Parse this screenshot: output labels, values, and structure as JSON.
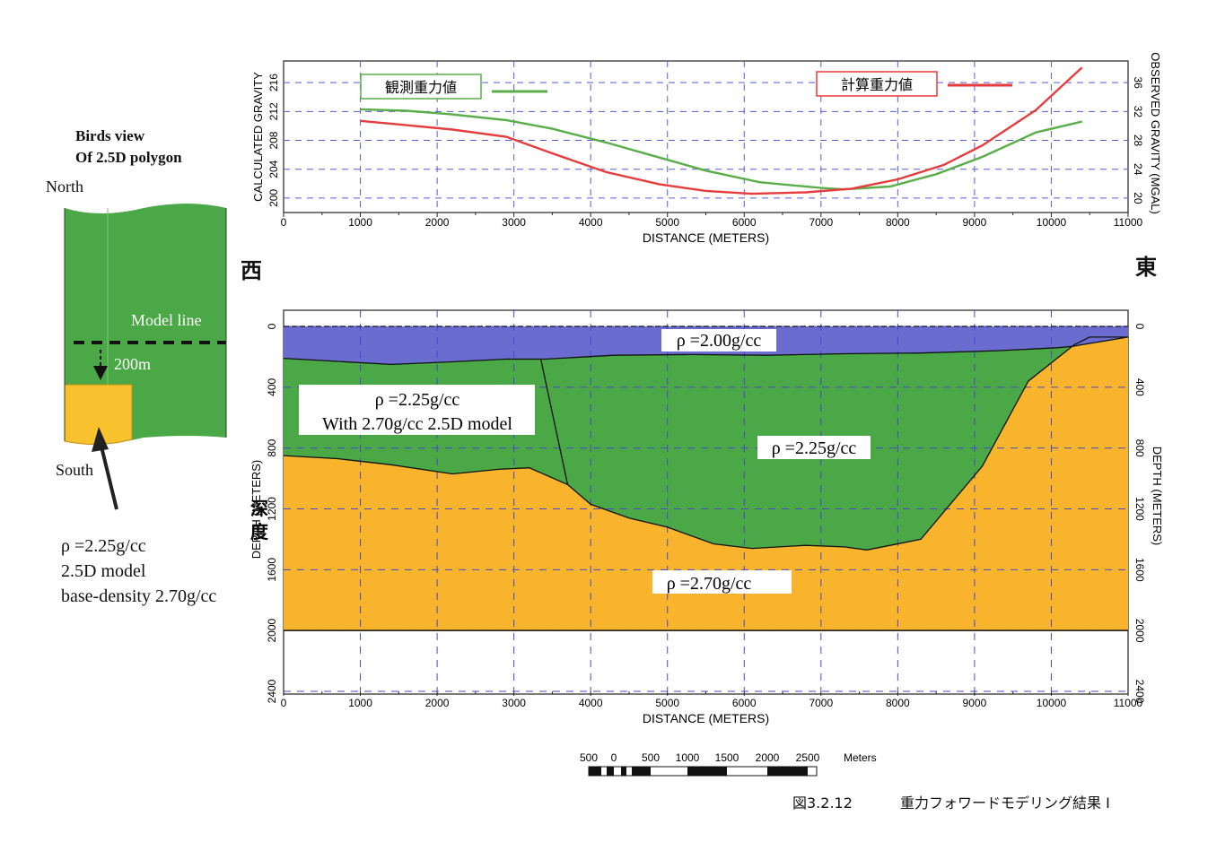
{
  "birds_view": {
    "title_line1": "Birds   view",
    "title_line2": "Of 2.5D polygon",
    "north_label": "North",
    "south_label": "South",
    "model_line_label": "Model   line",
    "offset_label": "200m",
    "note_line1": "ρ =2.25g/cc",
    "note_line2": "2.5D model",
    "note_line3": "base-density 2.70g/cc",
    "colors": {
      "green": "#4aa846",
      "yellow": "#f8c22e"
    }
  },
  "direction": {
    "west": "西",
    "east": "東"
  },
  "chart_data": [
    {
      "type": "line",
      "xlabel": "DISTANCE (METERS)",
      "ylabel_left": "CALCULATED GRAVITY",
      "ylabel_right": "OBSERVED GRAVITY (MGAL)",
      "xlim": [
        0,
        11000
      ],
      "xticks": [
        0,
        1000,
        2000,
        3000,
        4000,
        5000,
        6000,
        7000,
        8000,
        9000,
        10000,
        11000
      ],
      "ylim_left": [
        198,
        219
      ],
      "yticks_left": [
        200,
        204,
        208,
        212,
        216
      ],
      "ylim_right": [
        18,
        39
      ],
      "yticks_right": [
        20,
        24,
        28,
        32,
        36
      ],
      "grid": true,
      "series": [
        {
          "name": "観測重力値",
          "color": "#5aae4a",
          "axis": "right",
          "points": [
            [
              1000,
              32.3
            ],
            [
              1600,
              32.1
            ],
            [
              2200,
              31.6
            ],
            [
              2900,
              30.8
            ],
            [
              3500,
              29.6
            ],
            [
              4200,
              27.7
            ],
            [
              4900,
              25.6
            ],
            [
              5500,
              23.8
            ],
            [
              6200,
              22.2
            ],
            [
              7000,
              21.4
            ],
            [
              7300,
              21.2
            ],
            [
              7900,
              21.6
            ],
            [
              8500,
              23.3
            ],
            [
              9100,
              25.7
            ],
            [
              9800,
              29.1
            ],
            [
              10400,
              30.6
            ]
          ]
        },
        {
          "name": "計算重力値",
          "color": "#e63c3c",
          "axis": "left",
          "points": [
            [
              1000,
              210.7
            ],
            [
              1600,
              210.1
            ],
            [
              2200,
              209.5
            ],
            [
              2900,
              208.5
            ],
            [
              3500,
              206.2
            ],
            [
              4200,
              203.6
            ],
            [
              4900,
              201.9
            ],
            [
              5500,
              201.0
            ],
            [
              6100,
              200.6
            ],
            [
              6800,
              200.8
            ],
            [
              7400,
              201.3
            ],
            [
              8000,
              202.6
            ],
            [
              8600,
              204.6
            ],
            [
              9100,
              207.3
            ],
            [
              9800,
              212.2
            ],
            [
              10400,
              218.1
            ]
          ]
        }
      ]
    },
    {
      "type": "area",
      "xlabel": "DISTANCE (METERS)",
      "ylabel_left": "DEPTH (METERS)",
      "ylabel_left_overlay": "深度",
      "ylabel_right": "DEPTH (METERS)",
      "xlim": [
        0,
        11000
      ],
      "xticks": [
        0,
        1000,
        2000,
        3000,
        4000,
        5000,
        6000,
        7000,
        8000,
        9000,
        10000,
        11000
      ],
      "ylim": [
        0,
        2400
      ],
      "yticks": [
        0,
        400,
        800,
        1200,
        1600,
        2000,
        2400
      ],
      "inverted_y": true,
      "grid": true,
      "layers": [
        {
          "label": "ρ =2.00g/cc",
          "color": "#6a6ccf",
          "top_boundary": [
            [
              0,
              0
            ],
            [
              11000,
              0
            ]
          ],
          "bottom_boundary": [
            [
              0,
              210
            ],
            [
              700,
              230
            ],
            [
              1400,
              250
            ],
            [
              2100,
              235
            ],
            [
              2900,
              215
            ],
            [
              3400,
              215
            ],
            [
              4300,
              190
            ],
            [
              5300,
              185
            ],
            [
              5300,
              185
            ],
            [
              6300,
              190
            ],
            [
              7300,
              180
            ],
            [
              8300,
              175
            ],
            [
              9300,
              160
            ],
            [
              10100,
              140
            ],
            [
              10300,
              130
            ],
            [
              10400,
              120
            ],
            [
              11000,
              70
            ]
          ]
        },
        {
          "label": "ρ =2.25g/cc",
          "label_detail": "With 2.70g/cc 2.5D model",
          "color": "#4aa846"
        },
        {
          "label": "ρ =2.25g/cc",
          "color": "#4aa846",
          "bottom_boundary": [
            [
              3700,
              1040
            ],
            [
              4000,
              1170
            ],
            [
              4500,
              1260
            ],
            [
              5000,
              1320
            ],
            [
              5600,
              1430
            ],
            [
              6100,
              1460
            ],
            [
              6800,
              1440
            ],
            [
              7300,
              1450
            ],
            [
              7600,
              1470
            ],
            [
              8300,
              1400
            ],
            [
              9100,
              920
            ],
            [
              9700,
              360
            ],
            [
              10300,
              120
            ]
          ]
        },
        {
          "label": "ρ =2.70g/cc",
          "color": "#f8b42c",
          "top_boundary": [
            [
              0,
              850
            ],
            [
              700,
              870
            ],
            [
              1400,
              910
            ],
            [
              2200,
              970
            ],
            [
              2800,
              940
            ],
            [
              3200,
              930
            ],
            [
              3700,
              1040
            ],
            [
              4000,
              1170
            ],
            [
              4500,
              1260
            ],
            [
              5000,
              1320
            ],
            [
              5600,
              1430
            ],
            [
              6100,
              1460
            ],
            [
              6800,
              1440
            ],
            [
              7300,
              1450
            ],
            [
              7600,
              1470
            ],
            [
              8300,
              1400
            ],
            [
              9100,
              920
            ],
            [
              9700,
              360
            ],
            [
              10300,
              120
            ],
            [
              10500,
              70
            ],
            [
              11000,
              70
            ]
          ],
          "bottom_boundary": [
            [
              0,
              2000
            ],
            [
              11000,
              2000
            ]
          ]
        }
      ],
      "fault_line": [
        [
          3350,
          215
        ],
        [
          3700,
          1040
        ]
      ]
    }
  ],
  "scale_bar": {
    "labels": [
      "500",
      "0",
      "500",
      "1000",
      "1500",
      "2000",
      "2500"
    ],
    "unit": "Meters"
  },
  "caption": {
    "figure_number": "図3.2.12",
    "title": "重力フォワードモデリング結果 I"
  }
}
